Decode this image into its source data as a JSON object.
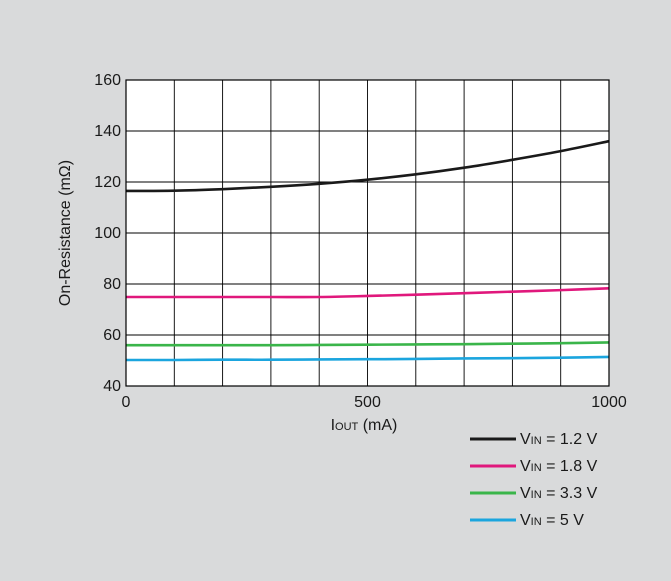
{
  "chart_data": {
    "type": "line",
    "xlabel": "IOUT (mA)",
    "xlabel_main": "I",
    "xlabel_sub": "OUT",
    "xlabel_rest": " (mA)",
    "ylabel": "On-Resistance (mΩ)",
    "xlim": [
      0,
      1000
    ],
    "ylim": [
      40,
      160
    ],
    "x_ticks": [
      0,
      500,
      1000
    ],
    "x_tick_labels": [
      "0",
      "500",
      "1000"
    ],
    "y_ticks": [
      40,
      60,
      80,
      100,
      120,
      140,
      160
    ],
    "y_tick_labels": [
      "40",
      "60",
      "80",
      "100",
      "120",
      "140",
      "160"
    ],
    "x_grid_step": 100,
    "y_grid_step": 20,
    "grid": true,
    "legend_placement": "bottom-right, below plot",
    "series": [
      {
        "name": "VIN = 1.2 V",
        "label_main": "V",
        "label_sub": "IN",
        "label_rest": " = 1.2 V",
        "color": "#1a1a1a",
        "x": [
          0,
          100,
          200,
          300,
          400,
          500,
          600,
          700,
          800,
          900,
          1000
        ],
        "y": [
          116.5,
          116.6,
          117.2,
          118.1,
          119.3,
          120.9,
          123.0,
          125.6,
          128.7,
          132.1,
          136.0
        ]
      },
      {
        "name": "VIN = 1.8 V",
        "label_main": "V",
        "label_sub": "IN",
        "label_rest": " = 1.8 V",
        "color": "#e0187c",
        "x": [
          0,
          100,
          200,
          300,
          400,
          500,
          600,
          700,
          800,
          900,
          1000
        ],
        "y": [
          74.9,
          74.9,
          74.9,
          74.9,
          74.9,
          75.3,
          75.8,
          76.4,
          77.0,
          77.6,
          78.3
        ]
      },
      {
        "name": "VIN = 3.3 V",
        "label_main": "V",
        "label_sub": "IN",
        "label_rest": " = 3.3 V",
        "color": "#3ab54a",
        "x": [
          0,
          100,
          200,
          300,
          400,
          500,
          600,
          700,
          800,
          900,
          1000
        ],
        "y": [
          56.0,
          56.0,
          56.0,
          56.0,
          56.1,
          56.2,
          56.3,
          56.4,
          56.6,
          56.8,
          57.1
        ]
      },
      {
        "name": "VIN = 5 V",
        "label_main": "V",
        "label_sub": "IN",
        "label_rest": " = 5 V",
        "color": "#1ba5de",
        "x": [
          0,
          100,
          200,
          300,
          400,
          500,
          600,
          700,
          800,
          900,
          1000
        ],
        "y": [
          50.2,
          50.2,
          50.3,
          50.3,
          50.4,
          50.5,
          50.6,
          50.8,
          50.9,
          51.1,
          51.4
        ]
      }
    ]
  }
}
